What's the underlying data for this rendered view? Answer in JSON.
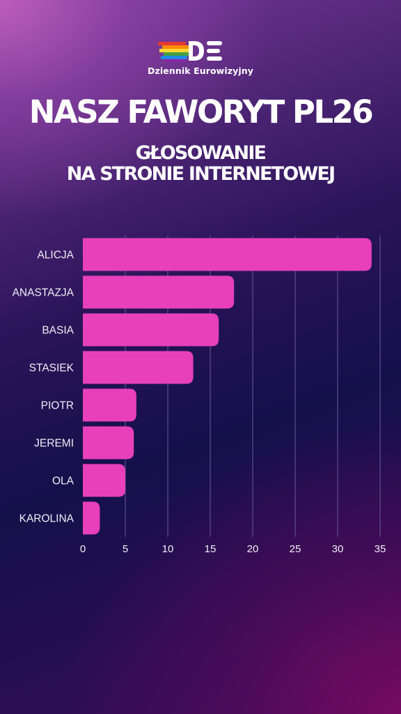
{
  "brand": {
    "name": "Dziennik Eurowizyjny",
    "logo_letters": "DE"
  },
  "title": "NASZ FAWORYT PL26",
  "subtitle_lines": [
    "GŁOSOWANIE",
    "NA STRONIE INTERNETOWEJ"
  ],
  "colors": {
    "bar": "#e83fbc",
    "grid": "#6a5a96",
    "text": "#ffffff"
  },
  "chart_data": {
    "type": "bar",
    "orientation": "horizontal",
    "categories": [
      "ALICJA",
      "ANASTAZJA",
      "BASIA",
      "STASIEK",
      "PIOTR",
      "JEREMI",
      "OLA",
      "KAROLINA"
    ],
    "values": [
      34,
      17.8,
      16,
      13,
      6.3,
      6,
      5,
      2
    ],
    "xlim": [
      0,
      35
    ],
    "xticks": [
      0,
      5,
      10,
      15,
      20,
      25,
      30,
      35
    ],
    "grid": true,
    "xlabel": "",
    "ylabel": ""
  }
}
